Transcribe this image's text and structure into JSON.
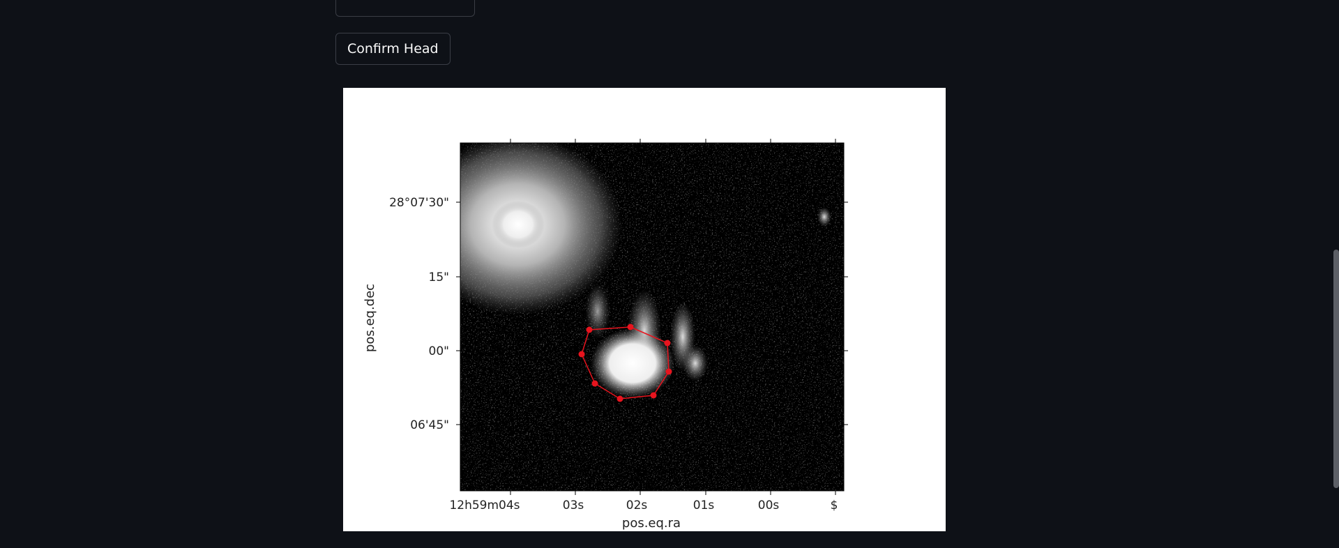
{
  "buttons": {
    "confirm_head": "Confirm Head"
  },
  "plot": {
    "xlabel": "pos.eq.ra",
    "ylabel": "pos.eq.dec",
    "x_ticks": [
      {
        "label": "12h59m04s"
      },
      {
        "label": "03s"
      },
      {
        "label": "02s"
      },
      {
        "label": "01s"
      },
      {
        "label": "00s"
      },
      {
        "label": "$"
      }
    ],
    "y_ticks": [
      "28°07'30\"",
      "15\"",
      "00\"",
      "06'45\""
    ],
    "polygon_color": "#e8141e",
    "image_colormap": "gray"
  }
}
